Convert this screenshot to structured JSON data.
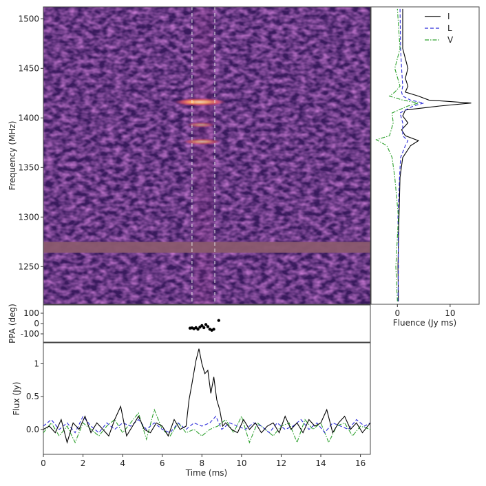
{
  "chart_data": [
    {
      "id": "dynamic-spectrum",
      "type": "heatmap",
      "ylabel": "Frequency (MHz)",
      "yticks": [
        1250,
        1300,
        1350,
        1400,
        1450,
        1500
      ],
      "ylim": [
        1212,
        1512
      ],
      "xlim": [
        0,
        16.5
      ],
      "colormap": "magma",
      "burst_window_ms": [
        7.5,
        8.65
      ],
      "masked_band_mhz": [
        1264,
        1275
      ],
      "bright_features": [
        {
          "time_ms": 7.9,
          "freq_mhz": 1416,
          "intensity": 1.0
        },
        {
          "time_ms": 8.0,
          "freq_mhz": 1376,
          "intensity": 0.6
        },
        {
          "time_ms": 7.95,
          "freq_mhz": 1393,
          "intensity": 0.35
        }
      ]
    },
    {
      "id": "spectrum",
      "type": "line",
      "xlabel": "Fluence (Jy ms)",
      "xticks": [
        0,
        10
      ],
      "xlim": [
        -5,
        15.5
      ],
      "ylim": [
        1212,
        1512
      ],
      "series": [
        {
          "name": "I",
          "color": "#000000",
          "dash": "solid",
          "freq": [
            1215,
            1250,
            1300,
            1340,
            1360,
            1372,
            1377,
            1382,
            1388,
            1395,
            1402,
            1408,
            1412,
            1415,
            1418,
            1422,
            1426,
            1432,
            1440,
            1450,
            1470,
            1510
          ],
          "fluence": [
            0.2,
            0.1,
            0.3,
            0.5,
            1.0,
            2.5,
            4.0,
            1.5,
            0.8,
            2.0,
            1.0,
            1.5,
            8.0,
            14.0,
            6.0,
            4.0,
            1.5,
            2.0,
            1.5,
            2.0,
            1.0,
            1.0
          ]
        },
        {
          "name": "L",
          "color": "#2b2bd9",
          "dash": "dashed",
          "freq": [
            1215,
            1250,
            1300,
            1340,
            1360,
            1372,
            1377,
            1382,
            1395,
            1405,
            1412,
            1415,
            1418,
            1422,
            1426,
            1432,
            1450,
            1470,
            1510
          ],
          "fluence": [
            0.1,
            0.2,
            0.1,
            0.4,
            0.6,
            1.5,
            2.0,
            1.0,
            1.0,
            0.5,
            3.0,
            5.0,
            2.5,
            1.0,
            0.8,
            1.0,
            0.8,
            0.6,
            0.5
          ]
        },
        {
          "name": "V",
          "color": "#2ca02c",
          "dash": "dashdot",
          "freq": [
            1215,
            1250,
            1300,
            1340,
            1360,
            1372,
            1378,
            1382,
            1395,
            1405,
            1412,
            1415,
            1418,
            1422,
            1426,
            1432,
            1450,
            1470,
            1510
          ],
          "fluence": [
            0.0,
            -0.3,
            0.2,
            -0.5,
            -1.0,
            -2.0,
            -4.0,
            -1.5,
            -0.8,
            -1.0,
            2.0,
            4.0,
            1.0,
            -1.5,
            -0.5,
            0.5,
            -0.5,
            0.5,
            0.0
          ]
        }
      ],
      "legend_position": "top-right"
    },
    {
      "id": "ppa",
      "type": "scatter",
      "ylabel": "PPA (deg)",
      "yticks": [
        100,
        0,
        -100
      ],
      "ylim": [
        -180,
        180
      ],
      "xlim": [
        0,
        16.5
      ],
      "points": [
        {
          "t": 7.4,
          "ppa": -45
        },
        {
          "t": 7.5,
          "ppa": -42
        },
        {
          "t": 7.6,
          "ppa": -50
        },
        {
          "t": 7.7,
          "ppa": -40
        },
        {
          "t": 7.8,
          "ppa": -55
        },
        {
          "t": 7.9,
          "ppa": -35
        },
        {
          "t": 8.0,
          "ppa": -20
        },
        {
          "t": 8.1,
          "ppa": -40
        },
        {
          "t": 8.2,
          "ppa": -10
        },
        {
          "t": 8.3,
          "ppa": -30
        },
        {
          "t": 8.4,
          "ppa": -55
        },
        {
          "t": 8.5,
          "ppa": -65
        },
        {
          "t": 8.6,
          "ppa": -55
        },
        {
          "t": 8.85,
          "ppa": 30
        }
      ]
    },
    {
      "id": "profile",
      "type": "line",
      "xlabel": "Time (ms)",
      "ylabel": "Flux (Jy)",
      "xticks": [
        0,
        2,
        4,
        6,
        8,
        10,
        12,
        14,
        16
      ],
      "yticks": [
        0.0,
        0.5,
        1.0
      ],
      "xlim": [
        0,
        16.5
      ],
      "ylim": [
        -0.38,
        1.32
      ],
      "series": [
        {
          "name": "I",
          "color": "#000000",
          "dash": "solid",
          "t": [
            0,
            0.3,
            0.6,
            0.9,
            1.2,
            1.5,
            1.8,
            2.1,
            2.4,
            2.7,
            3.0,
            3.3,
            3.6,
            3.9,
            4.2,
            4.5,
            4.8,
            5.1,
            5.4,
            5.7,
            6.0,
            6.3,
            6.6,
            6.9,
            7.2,
            7.35,
            7.5,
            7.7,
            7.85,
            8.0,
            8.15,
            8.3,
            8.45,
            8.6,
            8.75,
            8.9,
            9.05,
            9.2,
            9.5,
            9.8,
            10.1,
            10.4,
            10.7,
            11.0,
            11.3,
            11.6,
            11.9,
            12.2,
            12.5,
            12.8,
            13.1,
            13.4,
            13.7,
            14.0,
            14.3,
            14.6,
            14.9,
            15.2,
            15.5,
            15.8,
            16.1,
            16.5
          ],
          "flux": [
            0.0,
            0.05,
            -0.05,
            0.15,
            -0.2,
            0.1,
            0.0,
            0.2,
            -0.05,
            0.1,
            0.0,
            -0.1,
            0.15,
            0.35,
            -0.1,
            0.05,
            0.2,
            0.0,
            -0.05,
            0.1,
            0.05,
            -0.1,
            0.15,
            0.0,
            0.05,
            0.45,
            0.7,
            1.05,
            1.23,
            1.0,
            0.85,
            0.9,
            0.55,
            0.8,
            0.45,
            0.3,
            0.05,
            0.1,
            0.0,
            -0.05,
            0.15,
            0.0,
            0.1,
            -0.05,
            0.05,
            0.1,
            -0.05,
            0.2,
            0.0,
            0.1,
            -0.05,
            0.15,
            0.05,
            0.1,
            0.3,
            -0.05,
            0.1,
            0.2,
            0.0,
            0.1,
            -0.05,
            0.1
          ]
        },
        {
          "name": "L",
          "color": "#2b2bd9",
          "dash": "dashed",
          "t": [
            0,
            0.4,
            0.8,
            1.2,
            1.6,
            2.0,
            2.4,
            2.8,
            3.2,
            3.6,
            4.0,
            4.4,
            4.8,
            5.2,
            5.6,
            6.0,
            6.4,
            6.8,
            7.2,
            7.6,
            8.0,
            8.4,
            8.7,
            9.0,
            9.4,
            9.8,
            10.2,
            10.6,
            11.0,
            11.4,
            11.8,
            12.2,
            12.6,
            13.0,
            13.4,
            13.8,
            14.2,
            14.6,
            15.0,
            15.4,
            15.8,
            16.2,
            16.5
          ],
          "flux": [
            0.05,
            0.15,
            0.0,
            0.1,
            -0.05,
            0.2,
            0.05,
            -0.05,
            0.1,
            0.0,
            0.1,
            0.05,
            0.15,
            0.0,
            0.1,
            0.0,
            -0.05,
            0.1,
            0.0,
            0.1,
            0.05,
            0.1,
            0.2,
            0.0,
            0.1,
            0.05,
            0.0,
            0.1,
            0.05,
            -0.05,
            0.1,
            0.0,
            0.05,
            0.15,
            0.0,
            0.1,
            -0.05,
            0.1,
            0.05,
            0.0,
            0.15,
            0.05,
            0.1
          ]
        },
        {
          "name": "V",
          "color": "#2ca02c",
          "dash": "dashdot",
          "t": [
            0,
            0.4,
            0.8,
            1.2,
            1.6,
            2.0,
            2.4,
            2.8,
            3.2,
            3.6,
            4.0,
            4.4,
            4.8,
            5.2,
            5.6,
            6.0,
            6.4,
            6.8,
            7.2,
            7.6,
            8.0,
            8.4,
            8.8,
            9.2,
            9.6,
            10.0,
            10.4,
            10.8,
            11.2,
            11.6,
            12.0,
            12.4,
            12.8,
            13.2,
            13.6,
            14.0,
            14.4,
            14.8,
            15.2,
            15.6,
            16.0,
            16.5
          ],
          "flux": [
            -0.05,
            0.1,
            -0.1,
            0.05,
            -0.2,
            0.1,
            0.0,
            -0.1,
            0.05,
            0.15,
            -0.05,
            0.1,
            0.25,
            -0.15,
            0.3,
            0.0,
            -0.1,
            0.1,
            -0.05,
            0.0,
            -0.1,
            0.0,
            0.05,
            0.15,
            -0.05,
            0.2,
            -0.2,
            0.1,
            0.0,
            -0.1,
            0.05,
            0.1,
            -0.2,
            0.15,
            0.0,
            0.1,
            -0.2,
            0.05,
            0.1,
            -0.1,
            0.05,
            0.0
          ]
        }
      ]
    }
  ]
}
